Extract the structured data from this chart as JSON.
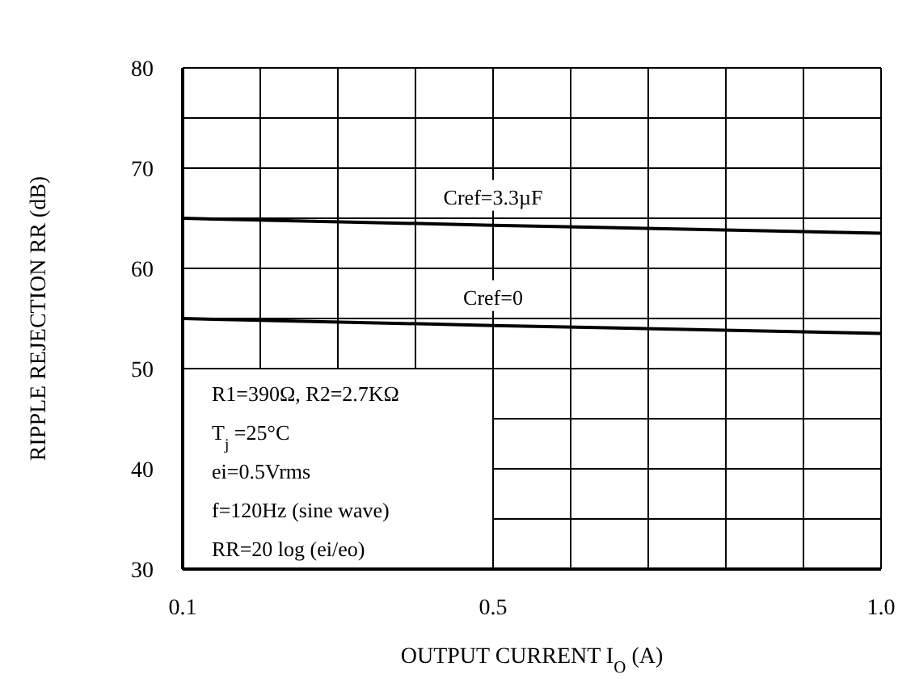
{
  "chart_data": {
    "type": "line",
    "xlabel": "OUTPUT CURRENT I$_{O}$  (A)",
    "ylabel": "RIPPLE REJECTION RR (dB)",
    "x": [
      0.1,
      0.5,
      1.0
    ],
    "series": [
      {
        "name": "Cref=3.3µF",
        "color": "#000000",
        "values": [
          65,
          64.3,
          63.5
        ]
      },
      {
        "name": "Cref=0",
        "color": "#000000",
        "values": [
          55,
          54.3,
          53.5
        ]
      }
    ],
    "xlim": [
      0.1,
      1.0
    ],
    "xticks": [
      0.1,
      {
        "value": 0.2,
        "label": null
      },
      {
        "value": 0.3,
        "label": null
      },
      {
        "value": 0.4,
        "label": null
      },
      0.5,
      {
        "value": 0.6,
        "label": null
      },
      {
        "value": 0.7,
        "label": null
      },
      {
        "value": 0.8,
        "label": null
      },
      {
        "value": 0.9,
        "label": null
      },
      {
        "value": 1.0,
        "label": "1.0"
      }
    ],
    "ylim": [
      30,
      80
    ],
    "yticks": [
      30,
      {
        "value": 35,
        "label": null
      },
      40,
      {
        "value": 45,
        "label": null
      },
      50,
      {
        "value": 55,
        "label": null
      },
      60,
      {
        "value": 65,
        "label": null
      },
      70,
      {
        "value": 75,
        "label": null
      },
      80
    ],
    "annotations": [
      "R1=390Ω,  R2=2.7KΩ",
      "T$_{j}$ =25°C",
      "ei=0.5Vrms",
      "f=120Hz (sine wave)",
      "RR=20 log (ei/eo)"
    ],
    "grid": true,
    "legend": false,
    "marker": "none",
    "line_style": "solid"
  }
}
